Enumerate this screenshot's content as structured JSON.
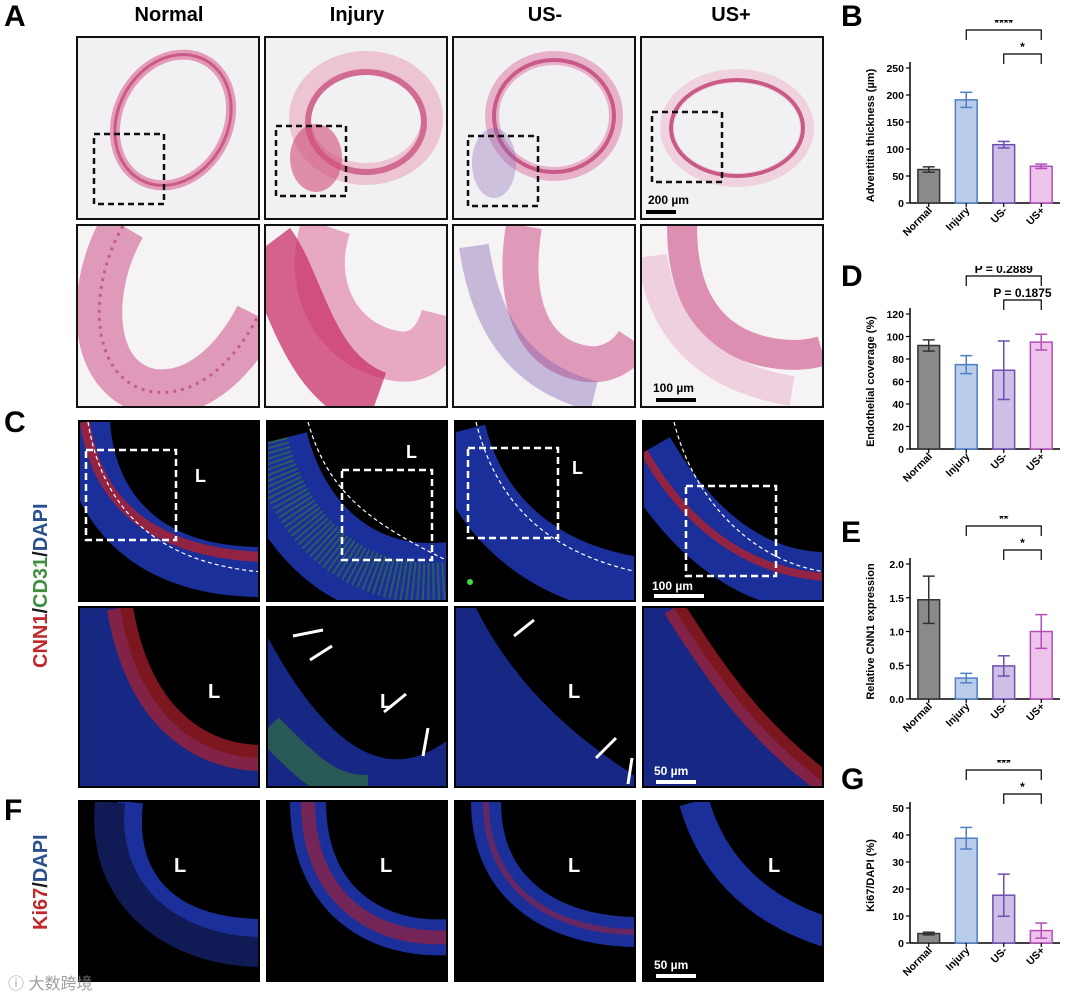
{
  "panels": {
    "a": "A",
    "b": "B",
    "c": "C",
    "d": "D",
    "e": "E",
    "f": "F",
    "g": "G"
  },
  "columns": [
    "Normal",
    "Injury",
    "US-",
    "US+"
  ],
  "scalebars": {
    "he_top": "200 µm",
    "he_bottom": "100 µm",
    "if_top": "100 µm",
    "if_bottom": "50 µm",
    "ki67": "50 µm"
  },
  "lumen_label": "L",
  "stain_labels": {
    "c_parts": [
      {
        "text": "CNN1",
        "color": "#c0282d"
      },
      {
        "text": "/",
        "color": "#1a1a1a"
      },
      {
        "text": "CD31",
        "color": "#3f8f3f"
      },
      {
        "text": "/",
        "color": "#1a1a1a"
      },
      {
        "text": "DAPI",
        "color": "#2a4f8f"
      }
    ],
    "f_parts": [
      {
        "text": "Ki67",
        "color": "#c0282d"
      },
      {
        "text": "/",
        "color": "#1a1a1a"
      },
      {
        "text": "DAPI",
        "color": "#2a4f8f"
      }
    ]
  },
  "watermark": "大数跨境",
  "colors": {
    "normal": "#8a8a8a",
    "injury": "#b9cdea",
    "us_minus": "#cdbfe6",
    "us_plus": "#eec3ec",
    "injury_edge": "#4f7fc4",
    "us_minus_edge": "#6d4fb0",
    "us_plus_edge": "#b24fb8"
  },
  "chart_data": [
    {
      "id": "B",
      "type": "bar",
      "categories": [
        "Normal",
        "Injury",
        "US-",
        "US+"
      ],
      "values": [
        62,
        191,
        108,
        68
      ],
      "errors": [
        5,
        14,
        6,
        4
      ],
      "ylabel": "Adventitia thickness (µm)",
      "ylim": [
        0,
        250
      ],
      "yticks": [
        0,
        50,
        100,
        150,
        200,
        250
      ],
      "annotations": [
        {
          "from": 1,
          "to": 3,
          "text": "****"
        },
        {
          "from": 2,
          "to": 3,
          "text": "*"
        }
      ]
    },
    {
      "id": "D",
      "type": "bar",
      "categories": [
        "Normal",
        "Injury",
        "US-",
        "US+"
      ],
      "values": [
        92,
        75,
        70,
        95
      ],
      "errors": [
        5,
        8,
        26,
        7
      ],
      "ylabel": "Endothelial coverage (%)",
      "ylim": [
        0,
        120
      ],
      "yticks": [
        0,
        20,
        40,
        60,
        80,
        100,
        120
      ],
      "annotations": [
        {
          "from": 1,
          "to": 3,
          "text": "P = 0.2889"
        },
        {
          "from": 2,
          "to": 3,
          "text": "P = 0.1875"
        }
      ]
    },
    {
      "id": "E",
      "type": "bar",
      "categories": [
        "Normal",
        "Injury",
        "US-",
        "US+"
      ],
      "values": [
        1.47,
        0.31,
        0.49,
        1.0
      ],
      "errors": [
        0.35,
        0.07,
        0.15,
        0.25
      ],
      "ylabel": "Relative CNN1 expression",
      "ylim": [
        0,
        2.0
      ],
      "yticks": [
        0.0,
        0.5,
        1.0,
        1.5,
        2.0
      ],
      "annotations": [
        {
          "from": 1,
          "to": 3,
          "text": "**"
        },
        {
          "from": 2,
          "to": 3,
          "text": "*"
        }
      ]
    },
    {
      "id": "G",
      "type": "bar",
      "categories": [
        "Normal",
        "Injury",
        "US-",
        "US+"
      ],
      "values": [
        3.5,
        38.8,
        17.7,
        4.6
      ],
      "errors": [
        0.5,
        4,
        7.8,
        2.8
      ],
      "ylabel": "Ki67/DAPI (%)",
      "ylim": [
        0,
        50
      ],
      "yticks": [
        0,
        10,
        20,
        30,
        40,
        50
      ],
      "annotations": [
        {
          "from": 1,
          "to": 3,
          "text": "***"
        },
        {
          "from": 2,
          "to": 3,
          "text": "*"
        }
      ]
    }
  ]
}
